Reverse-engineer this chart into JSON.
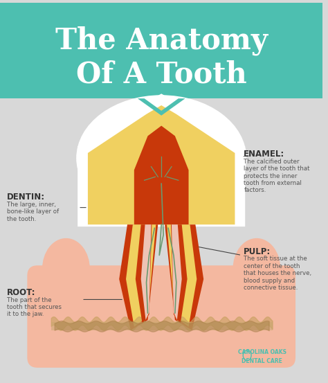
{
  "title_line1": "The Anatomy",
  "title_line2": "Of A Tooth",
  "title_color": "#ffffff",
  "title_bg_color": "#4dbfb0",
  "bg_color": "#d8d8d8",
  "lower_bg_color": "#f5f5f5",
  "enamel_label": "ENAMEL:",
  "enamel_desc": "The calcified outer\nlayer of the tooth that\nprotects the inner\ntooth from external\nfactors.",
  "dentin_label": "DENTIN:",
  "dentin_desc": "The large, inner,\nbone-like layer of\nthe tooth.",
  "pulp_label": "PULP:",
  "pulp_desc": "The soft tissue at the\ncenter of the tooth\nthat houses the nerve,\nblood supply and\nconnective tissue.",
  "root_label": "ROOT:",
  "root_desc": "The part of the\ntooth that secures\nit to the jaw.",
  "label_color": "#333333",
  "desc_color": "#555555",
  "enamel_color": "#f5f5f5",
  "dentin_color": "#f0d060",
  "pulp_color": "#c8380a",
  "root_outer_color": "#c8380a",
  "root_inner_color": "#f0d060",
  "gum_color": "#f4b8a0",
  "bone_color": "#f0c8b0",
  "nerve_color": "#6a9a70",
  "teal_color": "#4dbfb0",
  "footer_text": "CAROLINA OAKS\nDENTAL CARE"
}
